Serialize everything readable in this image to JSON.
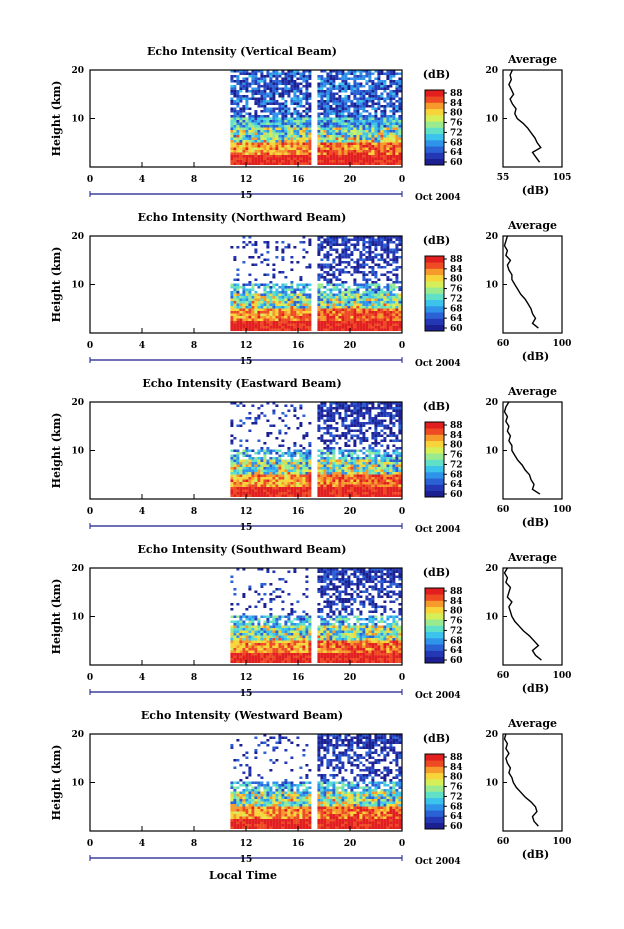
{
  "figure": {
    "x_axis_label": "Local Time",
    "date_label": "Oct 2004",
    "colorbar_unit": "(dB)",
    "average_title": "Average",
    "average_xlabel": "(dB)",
    "ylabel": "Height (km)",
    "colorbar_ticks": [
      "88",
      "84",
      "80",
      "76",
      "72",
      "68",
      "64",
      "60"
    ],
    "colormap": [
      "#1b1f8f",
      "#2438b5",
      "#2a62d6",
      "#2f93ea",
      "#3cc3ec",
      "#5fe0c7",
      "#9aeb8f",
      "#d6ee57",
      "#f6d43a",
      "#f79a2c",
      "#ee4a24",
      "#e21f1f"
    ]
  },
  "chart_data": [
    {
      "type": "heatmap",
      "title": "Echo Intensity (Vertical Beam)",
      "x_ticks": [
        "0",
        "4",
        "8",
        "12",
        "16",
        "20",
        "0"
      ],
      "day_label": "15",
      "xlim": [
        0,
        24
      ],
      "ylim": [
        0,
        20
      ],
      "y_ticks": [
        "20",
        "10"
      ],
      "colorbar_range": [
        60,
        88
      ],
      "data_start_hour": 10.8,
      "profile": {
        "xlim": [
          55,
          105
        ],
        "x_ticks": [
          "55",
          "105"
        ],
        "height": [
          1,
          2,
          3,
          4,
          5,
          6,
          7,
          8,
          9,
          10,
          11,
          12,
          13,
          14,
          15,
          16,
          17,
          18,
          19,
          20
        ],
        "db": [
          86,
          83,
          80,
          87,
          84,
          82,
          79,
          76,
          72,
          67,
          65,
          66,
          63,
          61,
          64,
          62,
          60,
          62,
          61,
          63
        ]
      }
    },
    {
      "type": "heatmap",
      "title": "Echo Intensity (Northward Beam)",
      "x_ticks": [
        "0",
        "4",
        "8",
        "12",
        "16",
        "20",
        "0"
      ],
      "day_label": "15",
      "xlim": [
        0,
        24
      ],
      "ylim": [
        0,
        20
      ],
      "y_ticks": [
        "20",
        "10"
      ],
      "colorbar_range": [
        60,
        88
      ],
      "data_start_hour": 10.8,
      "profile": {
        "xlim": [
          60,
          100
        ],
        "x_ticks": [
          "60",
          "100"
        ],
        "height": [
          1,
          2,
          3,
          4,
          5,
          6,
          7,
          8,
          9,
          10,
          11,
          12,
          13,
          14,
          15,
          16,
          17,
          18,
          19,
          20
        ],
        "db": [
          84,
          80,
          82,
          80,
          79,
          77,
          75,
          72,
          70,
          68,
          66,
          66,
          64,
          63,
          65,
          62,
          63,
          61,
          62,
          63
        ]
      }
    },
    {
      "type": "heatmap",
      "title": "Echo Intensity (Eastward Beam)",
      "x_ticks": [
        "0",
        "4",
        "8",
        "12",
        "16",
        "20",
        "0"
      ],
      "day_label": "15",
      "xlim": [
        0,
        24
      ],
      "ylim": [
        0,
        20
      ],
      "y_ticks": [
        "20",
        "10"
      ],
      "colorbar_range": [
        60,
        88
      ],
      "data_start_hour": 10.8,
      "profile": {
        "xlim": [
          60,
          100
        ],
        "x_ticks": [
          "60",
          "100"
        ],
        "height": [
          1,
          2,
          3,
          4,
          5,
          6,
          7,
          8,
          9,
          10,
          11,
          12,
          13,
          14,
          15,
          16,
          17,
          18,
          19,
          20
        ],
        "db": [
          85,
          80,
          81,
          79,
          78,
          75,
          73,
          70,
          68,
          66,
          66,
          64,
          65,
          63,
          64,
          62,
          63,
          61,
          62,
          64
        ]
      }
    },
    {
      "type": "heatmap",
      "title": "Echo Intensity (Southward Beam)",
      "x_ticks": [
        "0",
        "4",
        "8",
        "12",
        "16",
        "20",
        "0"
      ],
      "day_label": "15",
      "xlim": [
        0,
        24
      ],
      "ylim": [
        0,
        20
      ],
      "y_ticks": [
        "20",
        "10"
      ],
      "colorbar_range": [
        60,
        88
      ],
      "data_start_hour": 10.8,
      "profile": {
        "xlim": [
          60,
          100
        ],
        "x_ticks": [
          "60",
          "100"
        ],
        "height": [
          1,
          2,
          3,
          4,
          5,
          6,
          7,
          8,
          9,
          10,
          11,
          12,
          13,
          14,
          15,
          16,
          17,
          18,
          19,
          20
        ],
        "db": [
          86,
          82,
          80,
          84,
          81,
          78,
          74,
          71,
          68,
          66,
          65,
          64,
          66,
          63,
          64,
          65,
          62,
          63,
          61,
          63
        ]
      }
    },
    {
      "type": "heatmap",
      "title": "Echo Intensity (Westward Beam)",
      "x_ticks": [
        "0",
        "4",
        "8",
        "12",
        "16",
        "20",
        "0"
      ],
      "day_label": "15",
      "xlim": [
        0,
        24
      ],
      "ylim": [
        0,
        20
      ],
      "y_ticks": [
        "20",
        "10"
      ],
      "colorbar_range": [
        60,
        88
      ],
      "data_start_hour": 10.8,
      "profile": {
        "xlim": [
          60,
          100
        ],
        "x_ticks": [
          "60",
          "100"
        ],
        "height": [
          1,
          2,
          3,
          4,
          5,
          6,
          7,
          8,
          9,
          10,
          11,
          12,
          13,
          14,
          15,
          16,
          17,
          18,
          19,
          20
        ],
        "db": [
          84,
          81,
          80,
          83,
          82,
          79,
          75,
          72,
          69,
          67,
          66,
          64,
          65,
          63,
          62,
          64,
          62,
          63,
          61,
          62
        ]
      }
    }
  ]
}
